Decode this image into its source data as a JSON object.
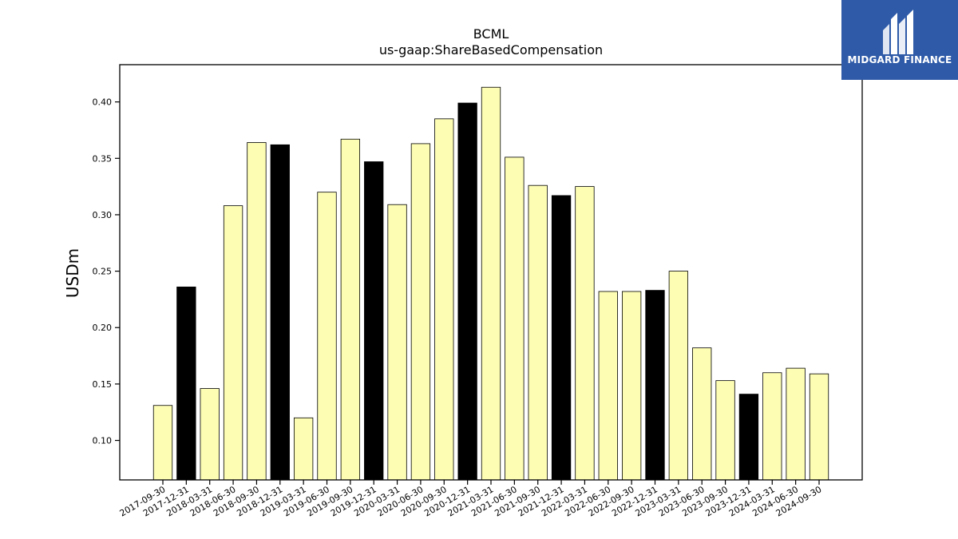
{
  "chart_data": {
    "type": "bar",
    "title": "BCML",
    "subtitle": "us-gaap:ShareBasedCompensation",
    "xlabel": "",
    "ylabel": "USDm",
    "ylim": [
      0.065,
      0.433
    ],
    "yticks": [
      0.1,
      0.15,
      0.2,
      0.25,
      0.3,
      0.35,
      0.4
    ],
    "ytick_labels": [
      "0.10",
      "0.15",
      "0.20",
      "0.25",
      "0.30",
      "0.35",
      "0.40"
    ],
    "grid": false,
    "categories": [
      "2017-09-30",
      "2017-12-31",
      "2018-03-31",
      "2018-06-30",
      "2018-09-30",
      "2018-12-31",
      "2019-03-31",
      "2019-06-30",
      "2019-09-30",
      "2019-12-31",
      "2020-03-31",
      "2020-06-30",
      "2020-09-30",
      "2020-12-31",
      "2021-03-31",
      "2021-06-30",
      "2021-09-30",
      "2021-12-31",
      "2022-03-31",
      "2022-06-30",
      "2022-09-30",
      "2022-12-31",
      "2023-03-31",
      "2023-06-30",
      "2023-09-30",
      "2023-12-31",
      "2024-03-31",
      "2024-06-30",
      "2024-09-30"
    ],
    "values": [
      0.131,
      0.236,
      0.146,
      0.308,
      0.364,
      0.362,
      0.12,
      0.32,
      0.367,
      0.347,
      0.309,
      0.363,
      0.385,
      0.399,
      0.413,
      0.351,
      0.326,
      0.317,
      0.325,
      0.232,
      0.232,
      0.233,
      0.25,
      0.182,
      0.153,
      0.141,
      0.16,
      0.164,
      0.159
    ],
    "highlight": [
      false,
      true,
      false,
      false,
      false,
      true,
      false,
      false,
      false,
      true,
      false,
      false,
      false,
      true,
      false,
      false,
      false,
      true,
      false,
      false,
      false,
      true,
      false,
      false,
      false,
      true,
      false,
      false,
      false
    ],
    "colors": {
      "bar": "#fdfdb4",
      "highlight": "#000000",
      "edge": "#000000"
    }
  },
  "logo": {
    "text": "MIDGARD FINANCE",
    "background": "#2e5aa8"
  }
}
